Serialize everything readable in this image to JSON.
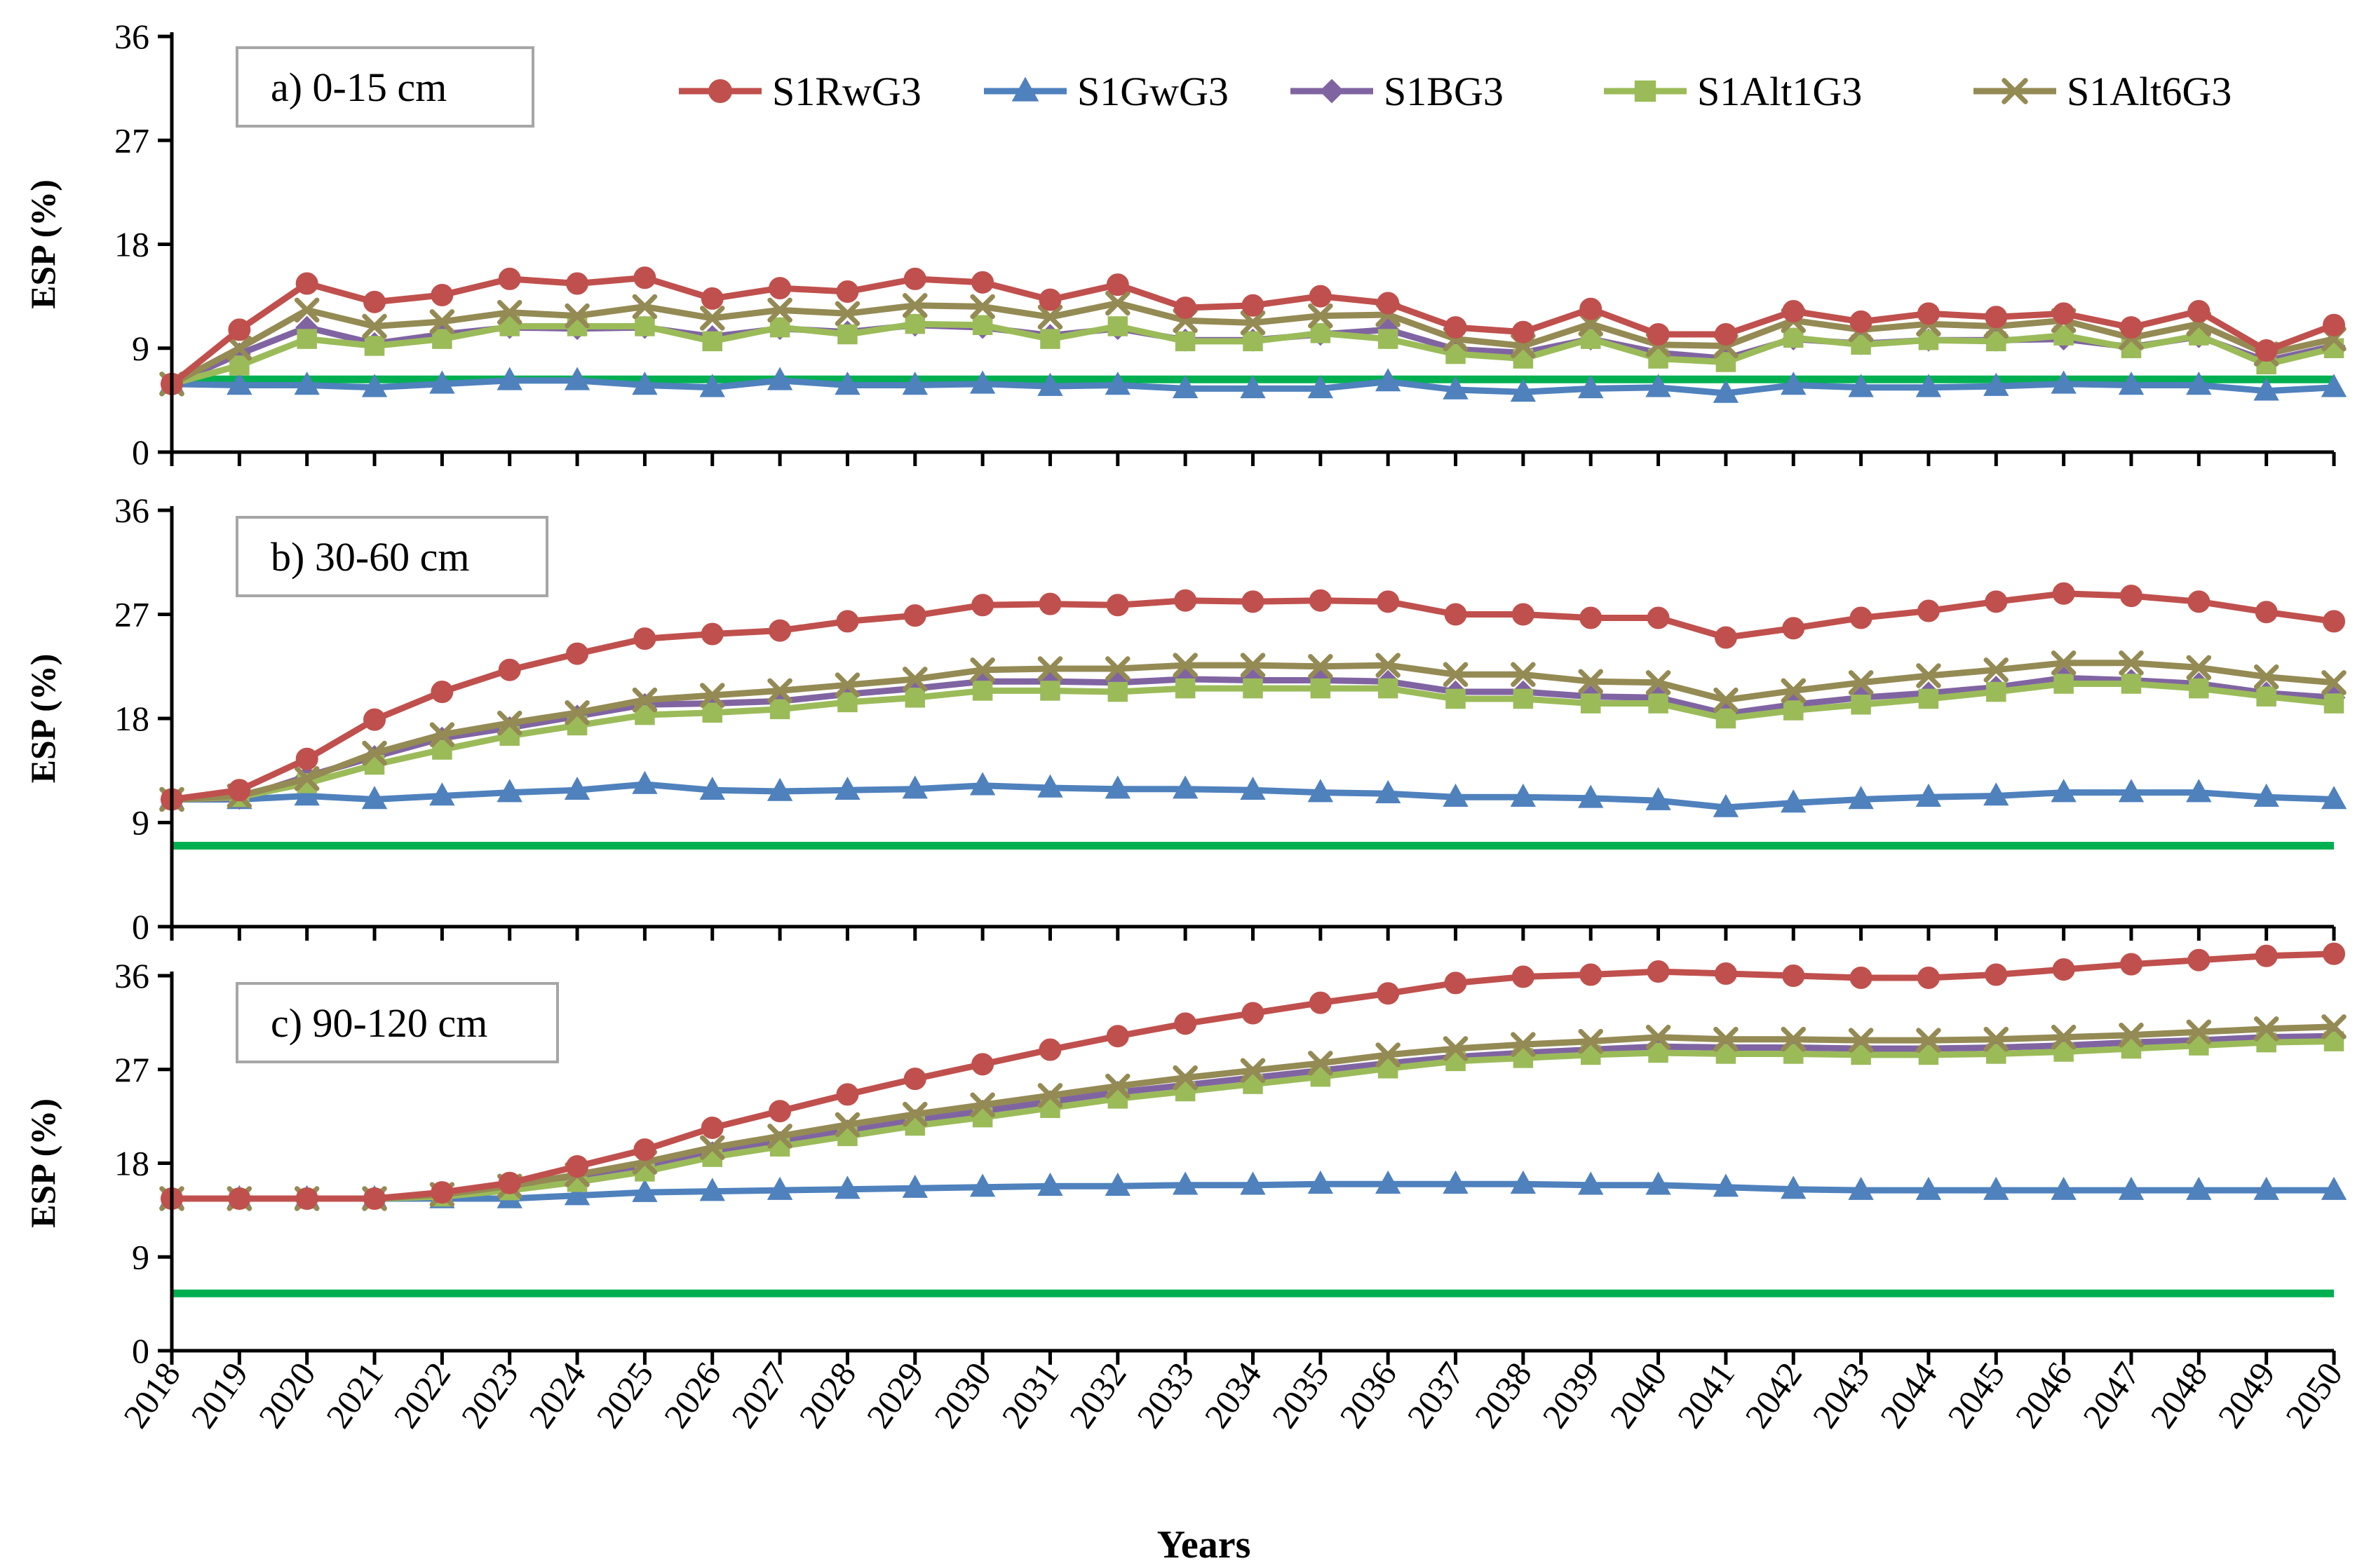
{
  "chart_data": {
    "type": "line",
    "xlabel": "Years",
    "x": [
      2018,
      2019,
      2020,
      2021,
      2022,
      2023,
      2024,
      2025,
      2026,
      2027,
      2028,
      2029,
      2030,
      2031,
      2032,
      2033,
      2034,
      2035,
      2036,
      2037,
      2038,
      2039,
      2040,
      2041,
      2042,
      2043,
      2044,
      2045,
      2046,
      2047,
      2048,
      2049,
      2050
    ],
    "legend": {
      "placement": "top-right of first panel",
      "entries": [
        {
          "name": "S1RwG3",
          "color": "#c0504d",
          "marker": "circle"
        },
        {
          "name": "S1GwG3",
          "color": "#4f81bd",
          "marker": "triangle"
        },
        {
          "name": "S1BG3",
          "color": "#8064a2",
          "marker": "diamond"
        },
        {
          "name": "S1Alt1G3",
          "color": "#9bbb59",
          "marker": "square"
        },
        {
          "name": "S1Alt6G3",
          "color": "#948a54",
          "marker": "x"
        }
      ]
    },
    "threshold": {
      "color": "#00b050"
    },
    "panels": [
      {
        "label": "a) 0-15 cm",
        "ylabel": "ESP (%)",
        "ylim": [
          0,
          36
        ],
        "yticks": [
          0,
          9,
          18,
          27,
          36
        ],
        "threshold": 6.3,
        "series": [
          {
            "name": "S1RwG3",
            "values": [
              5.9,
              10.6,
              14.6,
              13.0,
              13.6,
              15.0,
              14.6,
              15.1,
              13.3,
              14.2,
              13.9,
              15.0,
              14.7,
              13.2,
              14.5,
              12.5,
              12.7,
              13.5,
              12.9,
              10.8,
              10.4,
              12.4,
              10.2,
              10.2,
              12.2,
              11.3,
              12.0,
              11.7,
              12.0,
              10.8,
              12.2,
              8.8,
              11.0
            ]
          },
          {
            "name": "S1GwG3",
            "values": [
              5.9,
              5.8,
              5.8,
              5.6,
              5.9,
              6.2,
              6.2,
              5.8,
              5.6,
              6.2,
              5.8,
              5.8,
              5.9,
              5.7,
              5.8,
              5.5,
              5.5,
              5.5,
              6.1,
              5.4,
              5.2,
              5.5,
              5.6,
              5.1,
              5.8,
              5.6,
              5.6,
              5.7,
              5.9,
              5.8,
              5.8,
              5.3,
              5.6
            ]
          },
          {
            "name": "S1BG3",
            "values": [
              5.9,
              8.5,
              10.8,
              9.4,
              10.2,
              10.8,
              10.7,
              10.8,
              10.0,
              10.7,
              10.4,
              11.0,
              10.8,
              10.1,
              10.7,
              9.7,
              9.7,
              10.2,
              10.6,
              8.9,
              8.6,
              9.8,
              8.6,
              8.1,
              9.8,
              9.4,
              9.7,
              9.7,
              9.8,
              9.1,
              10.0,
              7.9,
              9.2
            ]
          },
          {
            "name": "S1Alt1G3",
            "values": [
              5.9,
              7.5,
              9.8,
              9.2,
              9.8,
              10.9,
              10.9,
              10.9,
              9.6,
              10.8,
              10.2,
              11.1,
              11.0,
              9.8,
              10.9,
              9.6,
              9.6,
              10.3,
              9.8,
              8.5,
              8.1,
              9.8,
              8.1,
              7.8,
              9.9,
              9.3,
              9.7,
              9.6,
              10.1,
              9.0,
              10.1,
              7.6,
              9.0
            ]
          },
          {
            "name": "S1Alt6G3",
            "values": [
              5.9,
              9.0,
              12.3,
              10.9,
              11.3,
              12.1,
              11.8,
              12.6,
              11.6,
              12.3,
              12.0,
              12.7,
              12.6,
              11.7,
              12.9,
              11.4,
              11.2,
              11.8,
              11.9,
              9.8,
              9.2,
              11.1,
              9.3,
              9.2,
              11.4,
              10.6,
              11.1,
              10.9,
              11.4,
              9.9,
              11.1,
              8.5,
              9.8
            ]
          }
        ]
      },
      {
        "label": "b) 30-60 cm",
        "ylabel": "ESP (%)",
        "ylim": [
          0,
          36
        ],
        "yticks": [
          0,
          9,
          18,
          27,
          36
        ],
        "threshold": 7.0,
        "series": [
          {
            "name": "S1RwG3",
            "values": [
              11.0,
              11.8,
              14.5,
              17.9,
              20.3,
              22.2,
              23.6,
              24.9,
              25.3,
              25.6,
              26.4,
              26.9,
              27.8,
              27.9,
              27.8,
              28.2,
              28.1,
              28.2,
              28.1,
              27.0,
              27.0,
              26.7,
              26.7,
              25.0,
              25.8,
              26.7,
              27.3,
              28.1,
              28.8,
              28.6,
              28.1,
              27.2,
              26.4
            ]
          },
          {
            "name": "S1GwG3",
            "values": [
              11.0,
              11.0,
              11.3,
              11.0,
              11.3,
              11.6,
              11.8,
              12.3,
              11.8,
              11.7,
              11.8,
              11.9,
              12.2,
              12.0,
              11.9,
              11.9,
              11.8,
              11.6,
              11.5,
              11.2,
              11.2,
              11.1,
              10.9,
              10.3,
              10.7,
              11.0,
              11.2,
              11.3,
              11.6,
              11.6,
              11.6,
              11.2,
              11.0
            ]
          },
          {
            "name": "S1BG3",
            "values": [
              11.0,
              11.1,
              13.0,
              14.7,
              16.3,
              17.2,
              18.2,
              19.2,
              19.3,
              19.5,
              20.1,
              20.6,
              21.2,
              21.2,
              21.1,
              21.4,
              21.3,
              21.3,
              21.2,
              20.3,
              20.3,
              19.9,
              19.8,
              18.4,
              19.2,
              19.8,
              20.2,
              20.7,
              21.5,
              21.3,
              21.0,
              20.2,
              19.8
            ]
          },
          {
            "name": "S1Alt1G3",
            "values": [
              11.0,
              11.2,
              12.4,
              14.0,
              15.3,
              16.5,
              17.4,
              18.3,
              18.5,
              18.8,
              19.4,
              19.8,
              20.4,
              20.4,
              20.3,
              20.6,
              20.6,
              20.6,
              20.6,
              19.7,
              19.7,
              19.3,
              19.3,
              18.0,
              18.7,
              19.2,
              19.7,
              20.3,
              21.0,
              21.0,
              20.6,
              19.9,
              19.3
            ]
          },
          {
            "name": "S1Alt6G3",
            "values": [
              11.0,
              11.3,
              12.8,
              15.0,
              16.6,
              17.6,
              18.5,
              19.6,
              20.0,
              20.4,
              20.9,
              21.4,
              22.2,
              22.3,
              22.3,
              22.6,
              22.6,
              22.5,
              22.6,
              21.8,
              21.8,
              21.2,
              21.1,
              19.6,
              20.4,
              21.1,
              21.7,
              22.2,
              22.8,
              22.8,
              22.4,
              21.6,
              21.1
            ]
          }
        ]
      },
      {
        "label": "c) 90-120 cm",
        "ylabel": "ESP (%)",
        "ylim": [
          0,
          36
        ],
        "yticks": [
          0,
          9,
          18,
          27,
          36
        ],
        "threshold": 5.5,
        "series": [
          {
            "name": "S1RwG3",
            "values": [
              14.6,
              14.6,
              14.6,
              14.6,
              15.2,
              16.1,
              17.7,
              19.3,
              21.4,
              23.0,
              24.6,
              26.1,
              27.5,
              28.9,
              30.2,
              31.4,
              32.4,
              33.4,
              34.3,
              35.3,
              35.9,
              36.1,
              36.4,
              36.2,
              36.0,
              35.8,
              35.8,
              36.1,
              36.6,
              37.1,
              37.5,
              37.9,
              38.1
            ]
          },
          {
            "name": "S1GwG3",
            "values": [
              14.6,
              14.6,
              14.6,
              14.6,
              14.6,
              14.6,
              14.9,
              15.2,
              15.3,
              15.4,
              15.5,
              15.6,
              15.7,
              15.8,
              15.8,
              15.9,
              15.9,
              16.0,
              16.0,
              16.0,
              16.0,
              15.9,
              15.9,
              15.7,
              15.5,
              15.4,
              15.4,
              15.4,
              15.4,
              15.4,
              15.4,
              15.4,
              15.4
            ]
          },
          {
            "name": "S1BG3",
            "values": [
              14.6,
              14.6,
              14.6,
              14.6,
              14.9,
              15.6,
              16.5,
              17.6,
              19.0,
              20.0,
              21.1,
              22.1,
              23.0,
              23.9,
              24.8,
              25.5,
              26.2,
              26.9,
              27.6,
              28.2,
              28.6,
              28.9,
              29.2,
              29.1,
              29.1,
              29.0,
              29.0,
              29.1,
              29.3,
              29.6,
              29.8,
              30.1,
              30.2
            ]
          },
          {
            "name": "S1Alt1G3",
            "values": [
              14.6,
              14.6,
              14.6,
              14.6,
              14.8,
              15.4,
              16.2,
              17.2,
              18.6,
              19.6,
              20.6,
              21.6,
              22.4,
              23.3,
              24.2,
              24.9,
              25.6,
              26.3,
              27.1,
              27.8,
              28.1,
              28.4,
              28.6,
              28.5,
              28.5,
              28.4,
              28.4,
              28.5,
              28.7,
              29.0,
              29.3,
              29.6,
              29.7
            ]
          },
          {
            "name": "S1Alt6G3",
            "values": [
              14.6,
              14.6,
              14.6,
              14.6,
              15.0,
              15.8,
              16.9,
              18.1,
              19.5,
              20.6,
              21.7,
              22.7,
              23.6,
              24.5,
              25.4,
              26.2,
              26.9,
              27.6,
              28.4,
              29.0,
              29.4,
              29.7,
              30.1,
              29.9,
              29.9,
              29.8,
              29.8,
              29.9,
              30.1,
              30.3,
              30.6,
              30.9,
              31.1
            ]
          }
        ]
      }
    ]
  }
}
